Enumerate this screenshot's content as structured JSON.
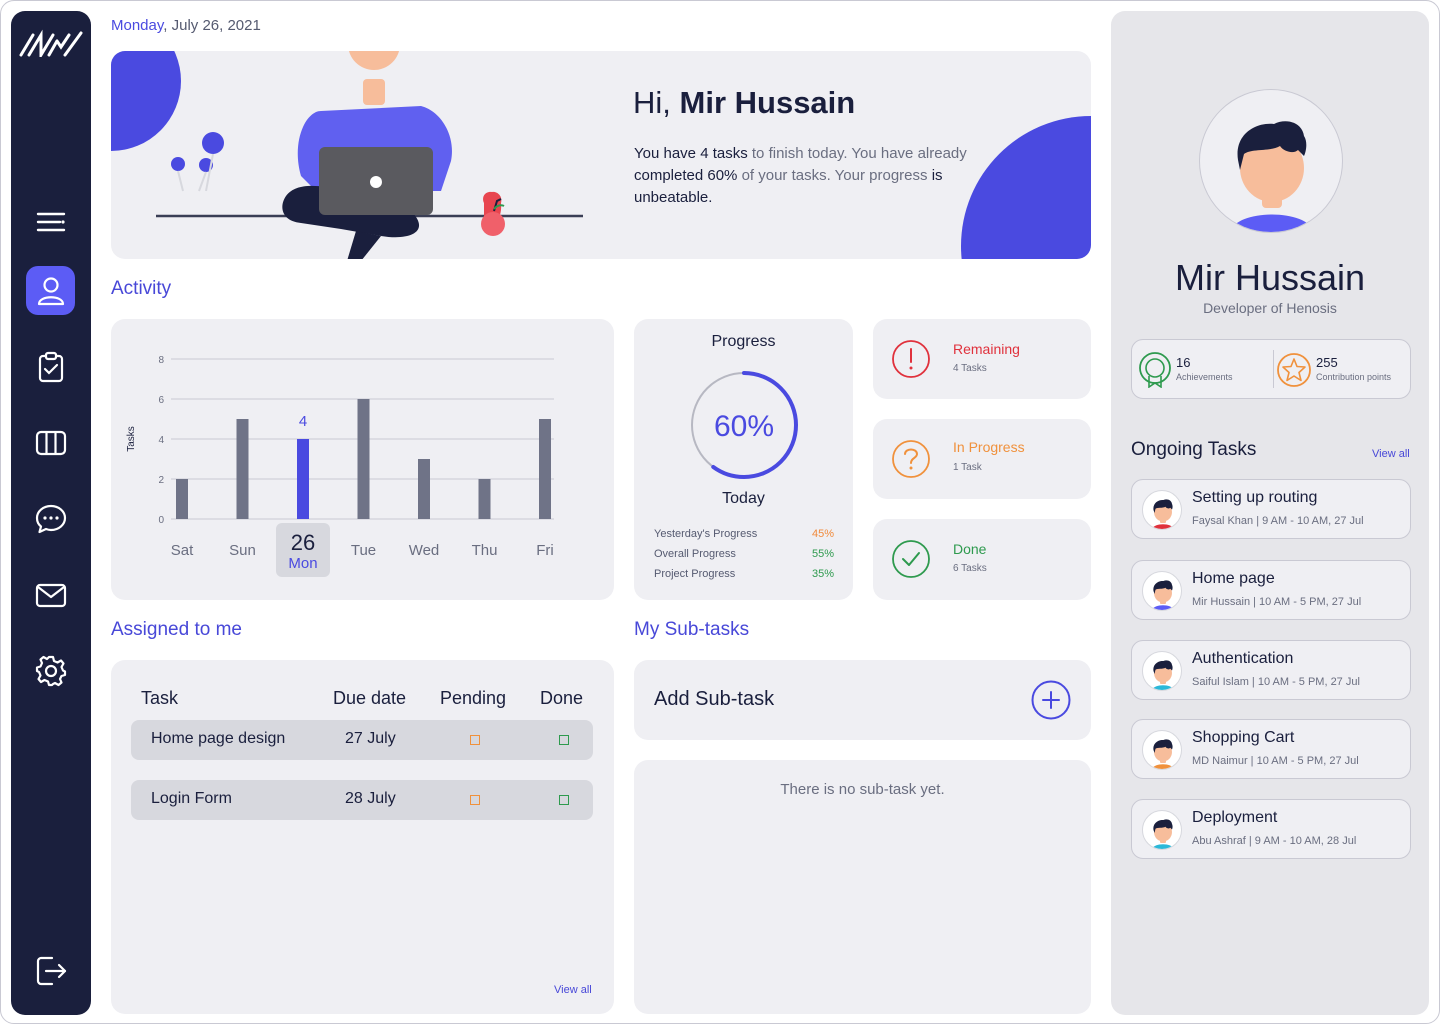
{
  "header": {
    "day": "Monday",
    "date": ", July 26, 2021"
  },
  "hero": {
    "greeting_prefix": "Hi,",
    "user_name": "Mir Hussain",
    "t1": "You have ",
    "t2": "4 tasks",
    "t3": " to finish today. You have already ",
    "t4": "completed 60%",
    "t5": " of your tasks. Your progress ",
    "t6": "is",
    "t7": " unbeatable."
  },
  "activity": {
    "title": "Activity",
    "selected_day_num": "26",
    "selected_day_name": "Mon"
  },
  "chart_data": {
    "type": "bar",
    "categories": [
      "Sat",
      "Sun",
      "Mon",
      "Tue",
      "Wed",
      "Thu",
      "Fri"
    ],
    "values": [
      2,
      5,
      4,
      6,
      3,
      2,
      5
    ],
    "highlight_index": 2,
    "highlight_label": "4",
    "ylabel": "Tasks",
    "yticks": [
      0,
      2,
      4,
      6,
      8
    ],
    "ylim": [
      0,
      8
    ],
    "grid": true,
    "colors": {
      "bar": "#6f7387",
      "highlight": "#4a4ae0"
    }
  },
  "progress": {
    "title": "Progress",
    "value": 0.6,
    "value_label": "60%",
    "subtitle": "Today",
    "rows": [
      {
        "label": "Yesterday's Progress",
        "value": "45%",
        "color": "#f08a3c"
      },
      {
        "label": "Overall Progress",
        "value": "55%",
        "color": "#2e9a4e"
      },
      {
        "label": "Project Progress",
        "value": "35%",
        "color": "#2e9a4e"
      }
    ]
  },
  "status": {
    "remaining": {
      "label": "Remaining",
      "sub": "4 Tasks",
      "color": "#e0313c"
    },
    "in_progress": {
      "label": "In Progress",
      "sub": "1 Task",
      "color": "#f0913c"
    },
    "done": {
      "label": "Done",
      "sub": "6 Tasks",
      "color": "#2e9a4e"
    }
  },
  "assigned": {
    "title": "Assigned to me",
    "headers": {
      "task": "Task",
      "due": "Due date",
      "pending": "Pending",
      "done": "Done"
    },
    "rows": [
      {
        "name": "Home page design",
        "due": "27  July"
      },
      {
        "name": "Login Form",
        "due": "28  July"
      }
    ],
    "view_all": "View all"
  },
  "subtasks": {
    "title": "My Sub-tasks",
    "add_label": "Add Sub-task",
    "empty": "There is no sub-task yet."
  },
  "profile": {
    "name": "Mir Hussain",
    "role": "Developer of Henosis",
    "achievements_count": "16",
    "achievements_label": "Achievements",
    "points_count": "255",
    "points_label": "Contribution points"
  },
  "ongoing": {
    "title": "Ongoing Tasks",
    "view_all": "View all",
    "tasks": [
      {
        "title": "Setting up routing",
        "meta": "Faysal Khan  |  9 AM - 10 AM,  27 Jul",
        "shirt": "#e0313c"
      },
      {
        "title": "Home page",
        "meta": "Mir Hussain  |  10 AM - 5 PM,  27 Jul",
        "shirt": "#5c5cf5"
      },
      {
        "title": "Authentication",
        "meta": "Saiful Islam  |  10 AM - 5 PM,  27 Jul",
        "shirt": "#2bb8d8"
      },
      {
        "title": "Shopping Cart",
        "meta": "MD Naimur  |  10 AM - 5 PM,  27 Jul",
        "shirt": "#f0913c"
      },
      {
        "title": "Deployment",
        "meta": "Abu Ashraf  |  9 AM - 10 AM,  28 Jul",
        "shirt": "#2bb8d8"
      }
    ]
  },
  "icons": {
    "logo": "brand-logo",
    "nav": [
      "menu-icon",
      "user-icon",
      "clipboard-check-icon",
      "columns-icon",
      "chat-icon",
      "mail-icon",
      "gear-icon",
      "logout-icon"
    ],
    "accent": "#5c5cf5"
  }
}
